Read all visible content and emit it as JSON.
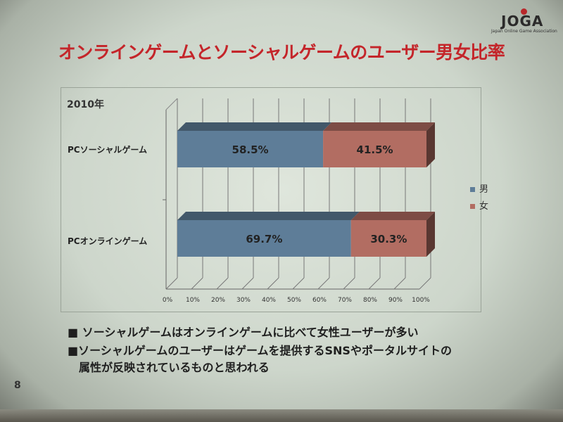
{
  "slide": {
    "title": "オンラインゲームとソーシャルゲームのユーザー男女比率",
    "logo_text": "JOGA",
    "logo_subtext": "Japan Online Game Association",
    "page_number": "8",
    "bullets": [
      "■ ソーシャルゲームはオンラインゲームに比べて女性ユーザーが多い",
      "■ソーシャルゲームのユーザーはゲームを提供するSNSやポータルサイトの",
      "属性が反映されているものと思われる"
    ]
  },
  "chart_data": {
    "type": "bar",
    "stacked": "100%",
    "orientation": "horizontal",
    "style": "3d",
    "title": "2010年",
    "categories": [
      "PCソーシャルゲーム",
      "PCオンラインゲーム"
    ],
    "series": [
      {
        "name": "男",
        "values": [
          58.5,
          69.7
        ],
        "labels": [
          "58.5%",
          "69.7%"
        ],
        "color": "#5e7d98"
      },
      {
        "name": "女",
        "values": [
          41.5,
          30.3
        ],
        "labels": [
          "41.5%",
          "30.3%"
        ],
        "color": "#b26d62"
      }
    ],
    "xlim": [
      0,
      100
    ],
    "x_ticks": [
      "0%",
      "10%",
      "20%",
      "30%",
      "40%",
      "50%",
      "60%",
      "70%",
      "80%",
      "90%",
      "100%"
    ],
    "grid": true,
    "legend_position": "right"
  }
}
